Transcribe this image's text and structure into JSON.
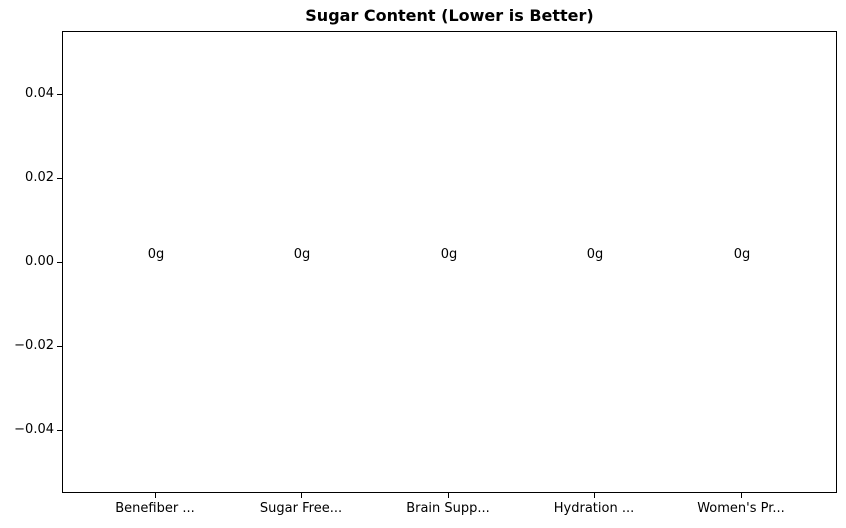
{
  "chart_data": {
    "type": "bar",
    "title": "Sugar Content (Lower is Better)",
    "categories": [
      "Benefiber ...",
      "Sugar Free...",
      "Brain Supp...",
      "Hydration ...",
      "Women's Pr..."
    ],
    "values": [
      0,
      0,
      0,
      0,
      0
    ],
    "value_labels": [
      "0g",
      "0g",
      "0g",
      "0g",
      "0g"
    ],
    "xlabel": "",
    "ylabel": "",
    "ylim": [
      -0.055,
      0.055
    ],
    "yticks": [
      0.04,
      0.02,
      0.0,
      -0.02,
      -0.04
    ],
    "ytick_labels": [
      "0.04",
      "0.02",
      "0.00",
      "−0.02",
      "−0.04"
    ],
    "grid": false,
    "legend_position": "none",
    "note_bars_visible": false
  },
  "colors": {
    "background": "#ffffff",
    "text": "#000000",
    "spine": "#000000"
  }
}
